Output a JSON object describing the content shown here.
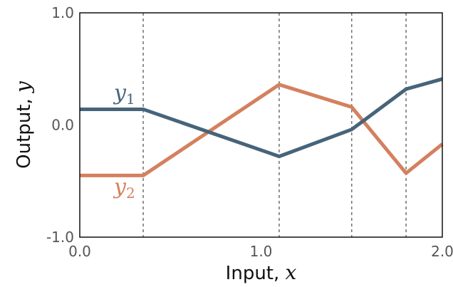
{
  "chart_data": {
    "type": "line",
    "xlabel": "Input, ",
    "xlabel_var": "x",
    "ylabel": "Output, ",
    "ylabel_var": "y",
    "xlim": [
      0.0,
      2.0
    ],
    "ylim": [
      -1.0,
      1.0
    ],
    "xticks": [
      "0.0",
      "1.0",
      "2.0"
    ],
    "yticks": [
      "1.0",
      "0.0",
      "-1.0"
    ],
    "xtick_values": [
      0.0,
      1.0,
      2.0
    ],
    "ytick_values": [
      1.0,
      0.0,
      -1.0
    ],
    "vlines": [
      0.35,
      1.1,
      1.5,
      1.8
    ],
    "grid": false,
    "series": [
      {
        "label_main": "y",
        "label_sub": "1",
        "color": "#46647a",
        "x": [
          0.0,
          0.35,
          1.1,
          1.5,
          1.8,
          2.0
        ],
        "y": [
          0.14,
          0.14,
          -0.28,
          -0.04,
          0.32,
          0.41
        ]
      },
      {
        "label_main": "y",
        "label_sub": "2",
        "color": "#d4805f",
        "x": [
          0.0,
          0.35,
          1.1,
          1.5,
          1.8,
          2.0
        ],
        "y": [
          -0.45,
          -0.45,
          0.36,
          0.16,
          -0.43,
          -0.17
        ]
      }
    ]
  }
}
